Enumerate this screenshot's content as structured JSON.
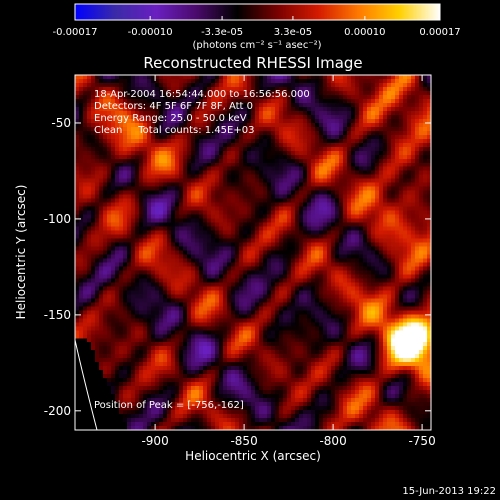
{
  "chart_data": {
    "type": "heatmap",
    "title": "Reconstructed RHESSI Image",
    "xlabel": "Heliocentric X (arcsec)",
    "ylabel": "Heliocentric Y (arcsec)",
    "xlim": [
      -945,
      -745
    ],
    "ylim": [
      -210,
      -25
    ],
    "x_ticks": [
      -900,
      -850,
      -800,
      -750
    ],
    "x_tick_labels": [
      "-900",
      "-850",
      "-800",
      "-750"
    ],
    "y_ticks": [
      -50,
      -100,
      -150,
      -200
    ],
    "y_tick_labels": [
      "-50",
      "-100",
      "-150",
      "-200"
    ],
    "colorbar": {
      "min": -0.00017,
      "max": 0.00017,
      "tick_values": [
        -0.00017,
        -0.0001,
        -3.3e-05,
        3.3e-05,
        0.0001,
        0.00017
      ],
      "tick_labels": [
        "-0.00017",
        "-0.00010",
        "-3.3e-05",
        "3.3e-05",
        "0.00010",
        "0.00017"
      ],
      "unit_label": "(photons cm⁻² s⁻¹ asec⁻²)",
      "colormap": [
        "#0000ff",
        "#3a2aa8",
        "#6a1fc0",
        "#4a0a6a",
        "#000000",
        "#7a0000",
        "#d41a00",
        "#ff7a00",
        "#ffd000",
        "#ffffff"
      ]
    },
    "annotations": [
      "18-Apr-2004 16:54:44.000 to 16:56:56.000",
      "Detectors: 4F 5F 6F 7F 8F, Att 0",
      "Energy Range: 25.0 - 50.0 keV",
      "Clean     Total counts: 1.45E+03"
    ],
    "peak_label": "Position of Peak = [-756,-162]",
    "peak": {
      "x": -756,
      "y": -162
    },
    "limb_arc": true,
    "footer": "15-Jun-2013 19:22"
  }
}
